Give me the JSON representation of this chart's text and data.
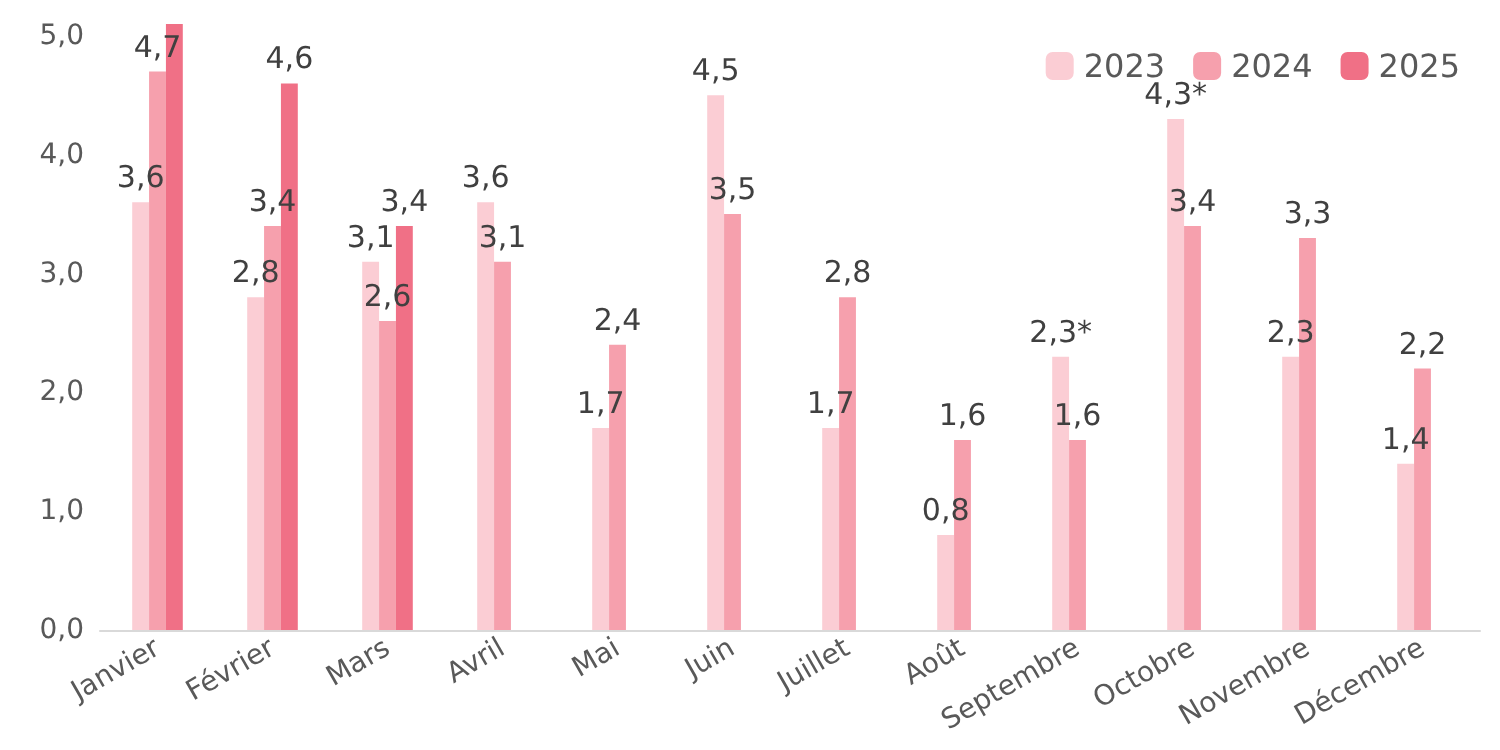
{
  "chart_data": {
    "type": "bar",
    "categories": [
      "Janvier",
      "Février",
      "Mars",
      "Avril",
      "Mai",
      "Juin",
      "Juillet",
      "Août",
      "Septembre",
      "Octobre",
      "Novembre",
      "Décembre"
    ],
    "series": [
      {
        "name": "2023",
        "color": "#fbcdd4",
        "values": [
          3.6,
          2.8,
          3.1,
          3.6,
          1.7,
          4.5,
          1.7,
          0.8,
          2.3,
          4.3,
          2.3,
          1.4
        ],
        "value_labels": [
          "3,6",
          "2,8",
          "3,1",
          "3,6",
          "1,7",
          "4,5",
          "1,7",
          "0,8",
          "2,3*",
          "4,3*",
          "2,3",
          "1,4"
        ]
      },
      {
        "name": "2024",
        "color": "#f6a0ad",
        "values": [
          4.7,
          3.4,
          2.6,
          3.1,
          2.4,
          3.5,
          2.8,
          1.6,
          1.6,
          3.4,
          3.3,
          2.2
        ],
        "value_labels": [
          "4,7",
          "3,4",
          "2,6",
          "3,1",
          "2,4",
          "3,5",
          "2,8",
          "1,6",
          "1,6",
          "3,4",
          "3,3",
          "2,2"
        ]
      },
      {
        "name": "2025",
        "color": "#f07086",
        "values": [
          5.1,
          4.6,
          3.4,
          null,
          null,
          null,
          null,
          null,
          null,
          null,
          null,
          null
        ],
        "value_labels": [
          null,
          "4,6",
          "3,4",
          null,
          null,
          null,
          null,
          null,
          null,
          null,
          null,
          null
        ]
      }
    ],
    "ylim": [
      0,
      5.1
    ],
    "yticks": [
      {
        "value": 0,
        "label": "0,0"
      },
      {
        "value": 1,
        "label": "1,0"
      },
      {
        "value": 2,
        "label": "2,0"
      },
      {
        "value": 3,
        "label": "3,0"
      },
      {
        "value": 4,
        "label": "4,0"
      },
      {
        "value": 5,
        "label": "5,0"
      }
    ],
    "grid": false,
    "legend": "top right"
  }
}
